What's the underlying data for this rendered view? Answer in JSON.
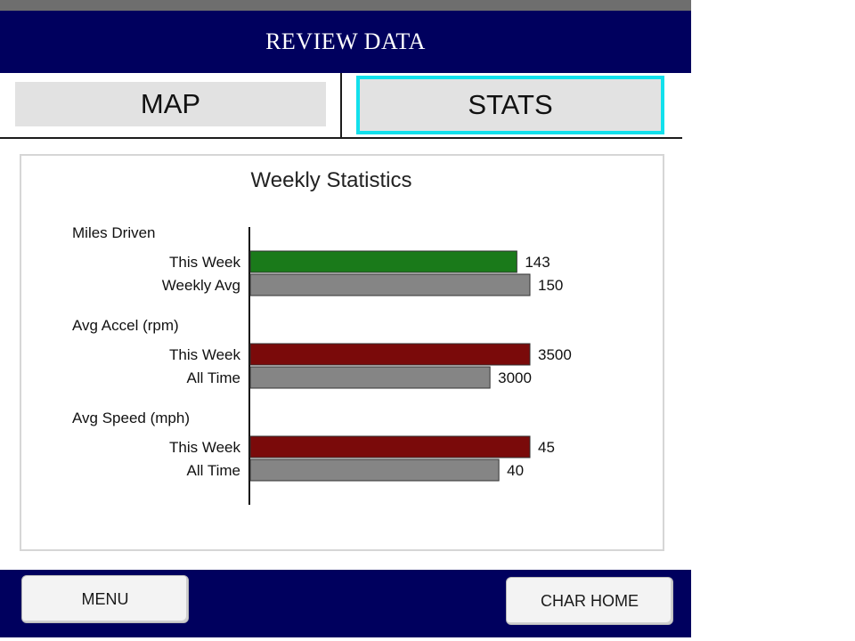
{
  "header": {
    "title": "REVIEW DATA"
  },
  "tabs": {
    "map": "MAP",
    "stats": "STATS",
    "active": "STATS"
  },
  "footer": {
    "menu": "MENU",
    "char_home": "CHAR HOME"
  },
  "colors": {
    "navy": "#00005e",
    "active_tab_border": "#12e0ec",
    "green": "#1a7a1a",
    "red": "#7a0a0a",
    "gray": "#858585"
  },
  "chart_data": {
    "type": "bar",
    "title": "Weekly Statistics",
    "orientation": "horizontal",
    "groups": [
      {
        "name": "Miles Driven",
        "bars": [
          {
            "label": "This Week",
            "value": 143,
            "value_label": "143",
            "color": "#1a7a1a"
          },
          {
            "label": "Weekly Avg",
            "value": 150,
            "value_label": "150",
            "color": "#858585"
          }
        ]
      },
      {
        "name": "Avg Accel (rpm)",
        "bars": [
          {
            "label": "This Week",
            "value": 3500,
            "value_label": "3500",
            "color": "#7a0a0a"
          },
          {
            "label": "All Time",
            "value": 3000,
            "value_label": "3000",
            "color": "#858585"
          }
        ]
      },
      {
        "name": "Avg Speed (mph)",
        "bars": [
          {
            "label": "This Week",
            "value": 45,
            "value_label": "45",
            "color": "#7a0a0a"
          },
          {
            "label": "All Time",
            "value": 40,
            "value_label": "40",
            "color": "#858585"
          }
        ]
      }
    ]
  }
}
